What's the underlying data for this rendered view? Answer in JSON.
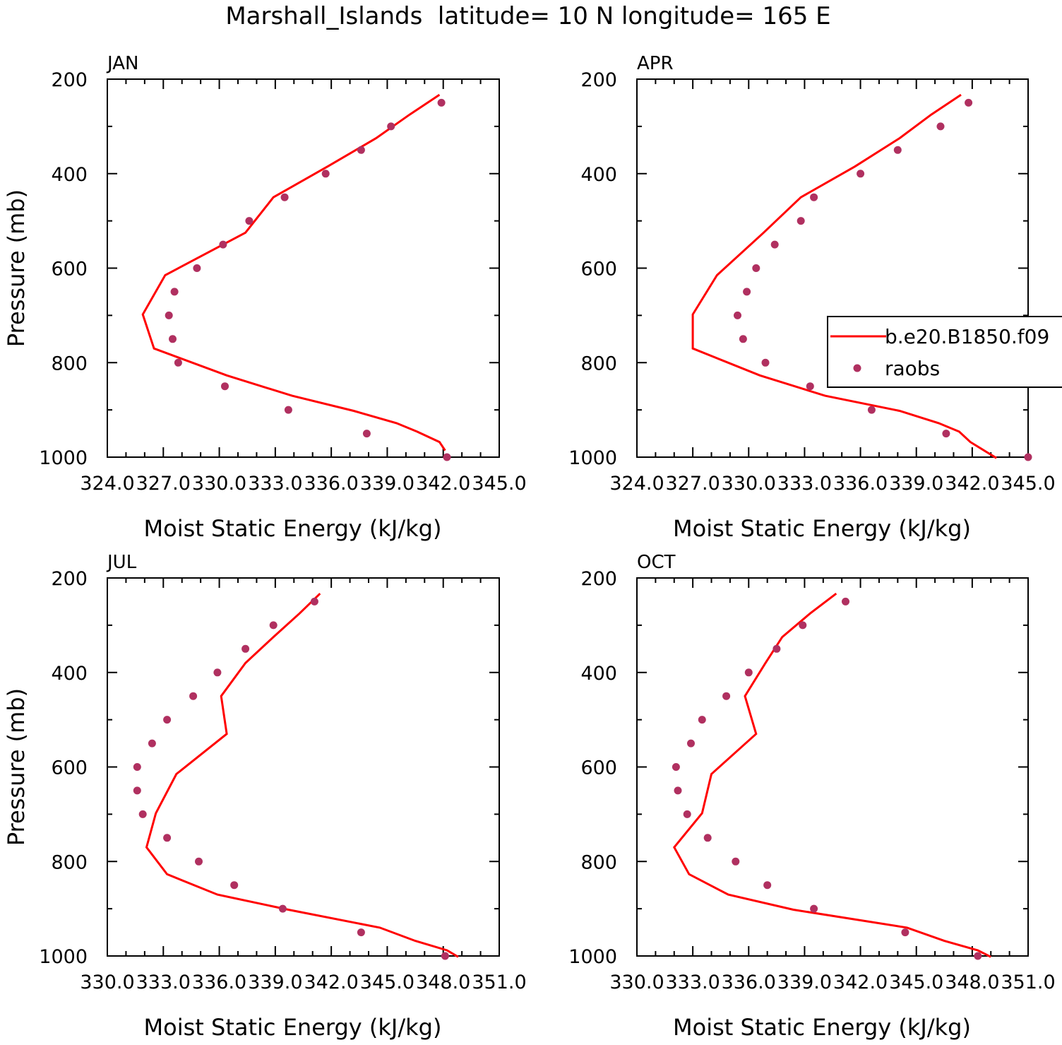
{
  "figure_title": "Marshall_Islands  latitude= 10 N longitude= 165 E",
  "legend": {
    "model_label": "b.e20.B1850.f09",
    "obs_label": "raobs"
  },
  "colors": {
    "model": "#ff0000",
    "obs": "#b03060",
    "axes": "#000000"
  },
  "chart_data": [
    {
      "type": "line",
      "panel_label": "JAN",
      "xlabel": "Moist Static Energy (kJ/kg)",
      "ylabel": "Pressure (mb)",
      "xlim": [
        324.0,
        345.0
      ],
      "ylim": [
        1000,
        200
      ],
      "xticks": [
        "324.0",
        "327.0",
        "330.0",
        "333.0",
        "336.0",
        "339.0",
        "342.0",
        "345.0"
      ],
      "yticks": [
        "200",
        "400",
        "600",
        "800",
        "1000"
      ],
      "series": [
        {
          "name": "b.e20.B1850.f09",
          "kind": "line",
          "x": [
            341.8,
            340.2,
            338.4,
            335.8,
            332.9,
            331.4,
            327.1,
            325.9,
            326.5,
            330.4,
            333.9,
            337.2,
            339.5,
            340.6,
            341.8,
            342.1
          ],
          "y": [
            233,
            275,
            325,
            385,
            450,
            525,
            615,
            698,
            770,
            827,
            870,
            902,
            928,
            946,
            968,
            986
          ]
        },
        {
          "name": "raobs",
          "kind": "scatter",
          "x": [
            341.9,
            339.2,
            337.6,
            335.7,
            333.5,
            331.6,
            330.2,
            328.8,
            327.6,
            327.3,
            327.5,
            327.8,
            330.3,
            333.7,
            337.9,
            342.2
          ],
          "y": [
            250,
            300,
            350,
            400,
            450,
            500,
            550,
            600,
            650,
            700,
            750,
            800,
            850,
            900,
            950,
            1000
          ]
        }
      ]
    },
    {
      "type": "line",
      "panel_label": "APR",
      "xlabel": "Moist Static Energy (kJ/kg)",
      "ylabel": "",
      "xlim": [
        324.0,
        345.0
      ],
      "ylim": [
        1000,
        200
      ],
      "xticks": [
        "324.0",
        "327.0",
        "330.0",
        "333.0",
        "336.0",
        "339.0",
        "342.0",
        "345.0"
      ],
      "yticks": [
        "200",
        "400",
        "600",
        "800",
        "1000"
      ],
      "series": [
        {
          "name": "b.e20.B1850.f09",
          "kind": "line",
          "x": [
            341.4,
            339.8,
            338.1,
            335.7,
            332.8,
            330.8,
            328.3,
            327.0,
            327.0,
            330.6,
            334.1,
            338.1,
            340.2,
            341.3,
            341.9,
            343.3
          ],
          "y": [
            233,
            275,
            325,
            385,
            450,
            525,
            615,
            698,
            770,
            827,
            870,
            902,
            928,
            946,
            968,
            1002
          ]
        },
        {
          "name": "raobs",
          "kind": "scatter",
          "x": [
            341.8,
            340.3,
            338.0,
            336.0,
            333.5,
            332.8,
            331.4,
            330.4,
            329.9,
            329.4,
            329.7,
            330.9,
            333.3,
            336.6,
            340.6,
            345.0
          ],
          "y": [
            250,
            300,
            350,
            400,
            450,
            500,
            550,
            600,
            650,
            700,
            750,
            800,
            850,
            900,
            950,
            1000
          ]
        }
      ]
    },
    {
      "type": "line",
      "panel_label": "JUL",
      "xlabel": "Moist Static Energy (kJ/kg)",
      "ylabel": "Pressure (mb)",
      "xlim": [
        330.0,
        351.0
      ],
      "ylim": [
        1000,
        200
      ],
      "xticks": [
        "330.0",
        "333.0",
        "336.0",
        "339.0",
        "342.0",
        "345.0",
        "348.0",
        "351.0"
      ],
      "yticks": [
        "200",
        "400",
        "600",
        "800",
        "1000"
      ],
      "series": [
        {
          "name": "b.e20.B1850.f09",
          "kind": "line",
          "x": [
            341.4,
            340.3,
            338.9,
            337.4,
            336.1,
            336.4,
            333.7,
            332.6,
            332.1,
            333.2,
            335.9,
            339.7,
            344.6,
            346.5,
            348.2,
            348.8
          ],
          "y": [
            233,
            275,
            325,
            380,
            450,
            530,
            615,
            698,
            770,
            827,
            870,
            902,
            940,
            968,
            988,
            1002
          ]
        },
        {
          "name": "raobs",
          "kind": "scatter",
          "x": [
            341.1,
            338.9,
            337.4,
            335.9,
            334.6,
            333.2,
            332.4,
            331.6,
            331.6,
            331.9,
            333.2,
            334.9,
            336.8,
            339.4,
            343.6,
            348.1
          ],
          "y": [
            250,
            300,
            350,
            400,
            450,
            500,
            550,
            600,
            650,
            700,
            750,
            800,
            850,
            900,
            950,
            1000
          ]
        }
      ]
    },
    {
      "type": "line",
      "panel_label": "OCT",
      "xlabel": "Moist Static Energy (kJ/kg)",
      "ylabel": "",
      "xlim": [
        330.0,
        351.0
      ],
      "ylim": [
        1000,
        200
      ],
      "xticks": [
        "330.0",
        "333.0",
        "336.0",
        "339.0",
        "342.0",
        "345.0",
        "348.0",
        "351.0"
      ],
      "yticks": [
        "200",
        "400",
        "600",
        "800",
        "1000"
      ],
      "series": [
        {
          "name": "b.e20.B1850.f09",
          "kind": "line",
          "x": [
            340.7,
            339.3,
            337.8,
            336.9,
            335.8,
            336.4,
            334.0,
            333.5,
            332.0,
            332.8,
            334.9,
            338.4,
            344.5,
            346.5,
            348.3,
            349.0
          ],
          "y": [
            233,
            275,
            325,
            380,
            450,
            530,
            615,
            698,
            770,
            827,
            870,
            902,
            940,
            968,
            988,
            1002
          ]
        },
        {
          "name": "raobs",
          "kind": "scatter",
          "x": [
            341.2,
            338.9,
            337.5,
            336.0,
            334.8,
            333.5,
            332.9,
            332.1,
            332.2,
            332.7,
            333.8,
            335.3,
            337.0,
            339.5,
            344.4,
            348.3
          ],
          "y": [
            250,
            300,
            350,
            400,
            450,
            500,
            550,
            600,
            650,
            700,
            750,
            800,
            850,
            900,
            950,
            1000
          ]
        }
      ]
    }
  ]
}
